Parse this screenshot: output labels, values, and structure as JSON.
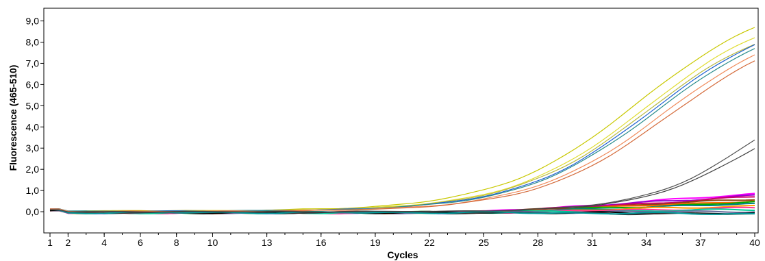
{
  "chart_data": {
    "type": "line",
    "title": "",
    "xlabel": "Cycles",
    "ylabel": "Fluorescence (465-510)",
    "xlim": [
      1,
      40
    ],
    "ylim": [
      -1.0,
      9.6
    ],
    "grid": false,
    "legend": "none",
    "x_ticks": [
      1,
      2,
      4,
      6,
      8,
      10,
      13,
      16,
      19,
      22,
      25,
      28,
      31,
      34,
      37,
      40
    ],
    "x_tick_labels": [
      "1",
      "2",
      "4",
      "6",
      "8",
      "10",
      "13",
      "16",
      "19",
      "22",
      "25",
      "28",
      "31",
      "34",
      "37",
      "40"
    ],
    "y_ticks": [
      0,
      1,
      2,
      3,
      4,
      5,
      6,
      7,
      8,
      9
    ],
    "y_tick_labels": [
      "0,0",
      "1,0",
      "2,0",
      "3,0",
      "4,0",
      "5,0",
      "6,0",
      "7,0",
      "8,0",
      "9,0"
    ],
    "sigmoid_series": [
      {
        "color": "#c8c800",
        "plateau": 10.3,
        "midpoint": 33.6,
        "slope": 0.26,
        "start": 0.05
      },
      {
        "color": "#e0dc30",
        "plateau": 9.8,
        "midpoint": 34.0,
        "slope": 0.27,
        "start": 0.05
      },
      {
        "color": "#b8b840",
        "plateau": 9.5,
        "midpoint": 34.1,
        "slope": 0.27,
        "start": 0.05
      },
      {
        "color": "#1c5fd0",
        "plateau": 9.6,
        "midpoint": 34.4,
        "slope": 0.27,
        "start": 0.04
      },
      {
        "color": "#2a8c8c",
        "plateau": 9.4,
        "midpoint": 34.5,
        "slope": 0.27,
        "start": 0.04
      },
      {
        "color": "#f08a5a",
        "plateau": 9.3,
        "midpoint": 35.0,
        "slope": 0.27,
        "start": 0.03
      },
      {
        "color": "#d46a3a",
        "plateau": 9.1,
        "midpoint": 35.3,
        "slope": 0.27,
        "start": 0.03
      },
      {
        "color": "#505050",
        "plateau": 7.0,
        "midpoint": 40.2,
        "slope": 0.33,
        "start": 0.02
      },
      {
        "color": "#404040",
        "plateau": 6.0,
        "midpoint": 40.0,
        "slope": 0.33,
        "start": 0.02
      }
    ],
    "flat_series": [
      {
        "color": "#ff00ff",
        "end": 0.85
      },
      {
        "color": "#9900cc",
        "end": 0.78
      },
      {
        "color": "#cc0066",
        "end": 0.7
      },
      {
        "color": "#8b4513",
        "end": 0.6
      },
      {
        "color": "#ff6600",
        "end": 0.52
      },
      {
        "color": "#00aa00",
        "end": 0.45
      },
      {
        "color": "#008080",
        "end": 0.38
      },
      {
        "color": "#ff9900",
        "end": 0.28
      },
      {
        "color": "#ff3399",
        "end": 0.18
      },
      {
        "color": "#00cc99",
        "end": 0.1
      },
      {
        "color": "#666699",
        "end": 0.02
      },
      {
        "color": "#000000",
        "end": -0.08
      },
      {
        "color": "#333333",
        "end": -0.12
      },
      {
        "color": "#009999",
        "end": -0.1
      }
    ],
    "colors": {
      "axis": "#000000",
      "background": "#ffffff"
    }
  }
}
